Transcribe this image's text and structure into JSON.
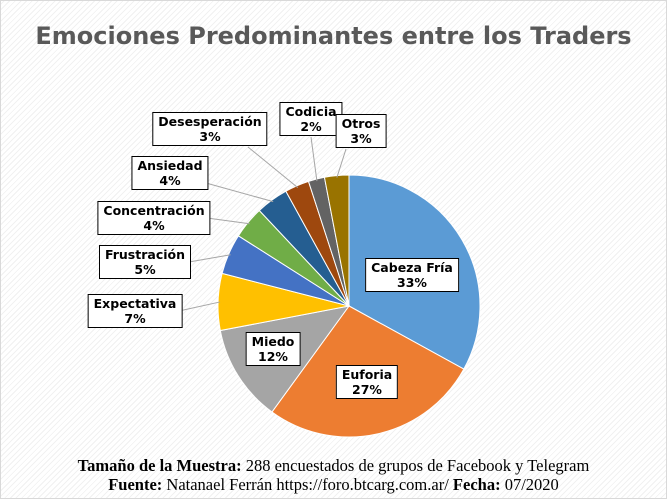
{
  "chart_data": {
    "type": "pie",
    "title": "Emociones Predominantes entre los Traders",
    "start_angle": "12 o'clock, clockwise",
    "slices": [
      {
        "label": "Cabeza Fría",
        "value": 33,
        "display": "33%",
        "color": "#5B9BD5"
      },
      {
        "label": "Euforia",
        "value": 27,
        "display": "27%",
        "color": "#ED7D31"
      },
      {
        "label": "Miedo",
        "value": 12,
        "display": "12%",
        "color": "#A5A5A5"
      },
      {
        "label": "Expectativa",
        "value": 7,
        "display": "7%",
        "color": "#FFC000"
      },
      {
        "label": "Frustración",
        "value": 5,
        "display": "5%",
        "color": "#4472C4"
      },
      {
        "label": "Concentración",
        "value": 4,
        "display": "4%",
        "color": "#70AD47"
      },
      {
        "label": "Ansiedad",
        "value": 4,
        "display": "4%",
        "color": "#255E91"
      },
      {
        "label": "Desesperación",
        "value": 3,
        "display": "3%",
        "color": "#9E480E"
      },
      {
        "label": "Codicia",
        "value": 2,
        "display": "2%",
        "color": "#636363"
      },
      {
        "label": "Otros",
        "value": 3,
        "display": "3%",
        "color": "#997300"
      }
    ]
  },
  "footer": {
    "line1_bold": "Tamaño de la Muestra:",
    "line1_text": " 288 encuestados de grupos de Facebook y Telegram",
    "line2_bold": "Fuente:",
    "line2_text": " Natanael Ferrán https://foro.btcarg.com.ar/ ",
    "line2_bold2": "Fecha:",
    "line2_text2": " 07/2020"
  }
}
